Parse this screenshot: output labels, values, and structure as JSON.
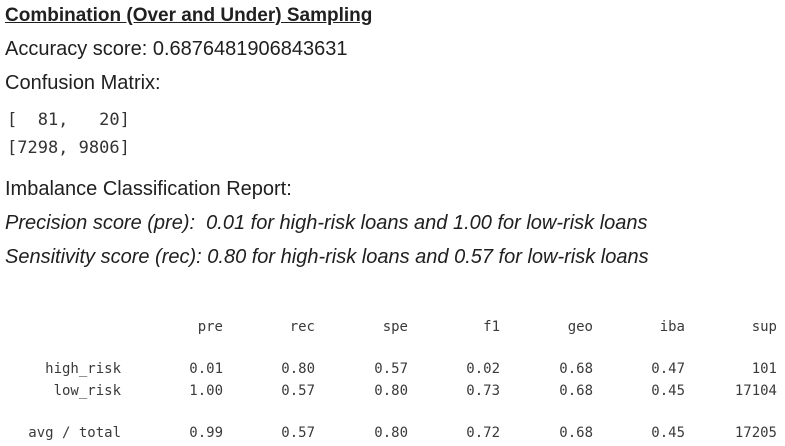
{
  "title": "Combination (Over and Under) Sampling",
  "accuracy_text": "Accuracy score: 0.6876481906843631",
  "confusion_label": "Confusion Matrix:",
  "confusion_matrix": {
    "row1": "[  81,   20]",
    "row2": "[7298, 9806]"
  },
  "report_label": "Imbalance Classification Report:",
  "precision_text": "Precision score (pre):  0.01 for high-risk loans and 1.00 for low-risk loans",
  "sensitivity_text": "Sensitivity score (rec): 0.80 for high-risk loans and 0.57 for low-risk loans",
  "report": {
    "headers": [
      "pre",
      "rec",
      "spe",
      "f1",
      "geo",
      "iba",
      "sup"
    ],
    "rows": [
      {
        "label": "high_risk",
        "values": [
          "0.01",
          "0.80",
          "0.57",
          "0.02",
          "0.68",
          "0.47",
          "101"
        ]
      },
      {
        "label": "low_risk",
        "values": [
          "1.00",
          "0.57",
          "0.80",
          "0.73",
          "0.68",
          "0.45",
          "17104"
        ]
      },
      {
        "label": "avg / total",
        "values": [
          "0.99",
          "0.57",
          "0.80",
          "0.72",
          "0.68",
          "0.45",
          "17205"
        ]
      }
    ]
  }
}
